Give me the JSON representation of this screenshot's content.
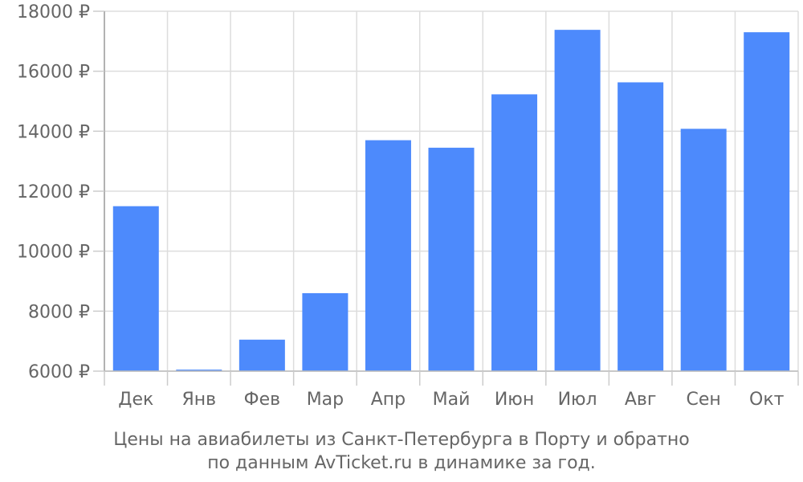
{
  "chart_data": {
    "type": "bar",
    "categories": [
      "Дек",
      "Янв",
      "Фев",
      "Мар",
      "Апр",
      "Май",
      "Июн",
      "Июл",
      "Авг",
      "Сен",
      "Окт"
    ],
    "values": [
      11500,
      6050,
      7050,
      8600,
      13700,
      13450,
      15230,
      17380,
      15630,
      14080,
      17300
    ],
    "ylim": [
      6000,
      18000
    ],
    "yticks": [
      6000,
      8000,
      10000,
      12000,
      14000,
      16000,
      18000
    ],
    "ytick_labels": [
      "6000 ₽",
      "8000 ₽",
      "10000 ₽",
      "12000 ₽",
      "14000 ₽",
      "16000 ₽",
      "18000 ₽"
    ],
    "grid": true,
    "bar_color": "#4d8afc",
    "grid_color": "#dddddd",
    "text_color": "#666666",
    "title_line1": "Цены на авиабилеты из Санкт-Петербурга в Порту и обратно",
    "title_line2": "по данным AvTicket.ru в динамике за год."
  }
}
